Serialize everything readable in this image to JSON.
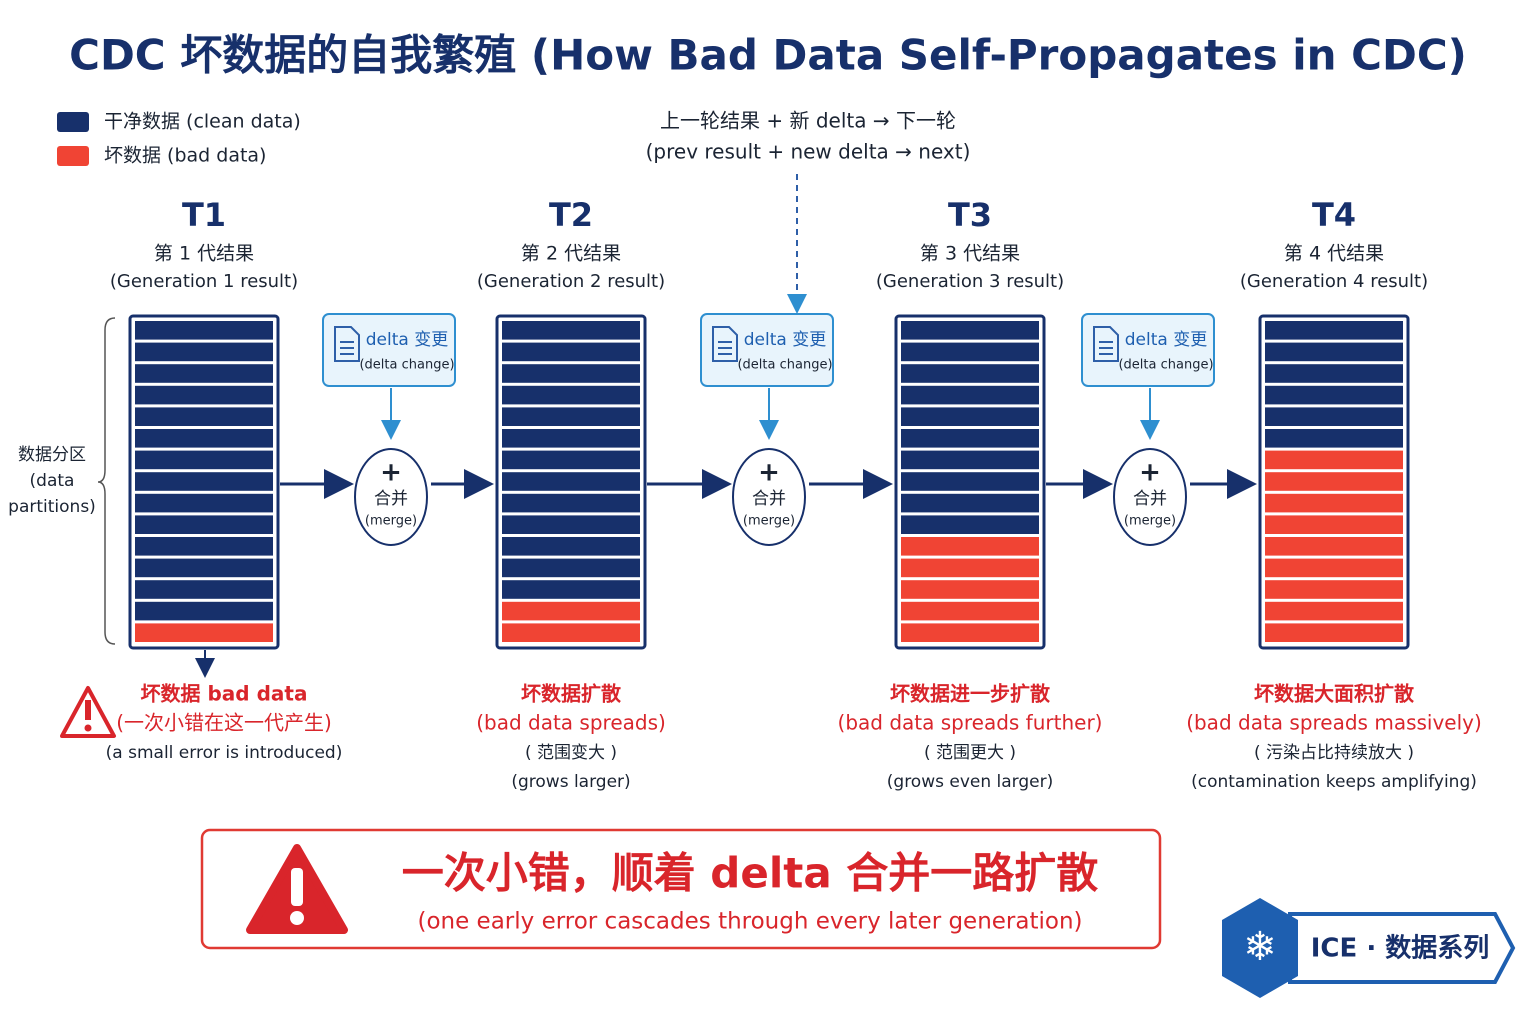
{
  "title": "CDC 坏数据的自我繁殖 (How Bad Data Self-Propagates in CDC)",
  "legend": [
    {
      "label": "干净数据 (clean data)",
      "color": "#17306b"
    },
    {
      "label": "坏数据 (bad data)",
      "color": "#f04434"
    }
  ],
  "axis_label": [
    "数据分区",
    "(data",
    "partitions)"
  ],
  "note": [
    "上一轮结果 + 新 delta → 下一轮",
    "(prev result + new delta → next)"
  ],
  "generations": [
    {
      "label": "T1",
      "zh": "第 1 代结果",
      "en": "(Generation 1 result)",
      "clean": 14,
      "bad": 1,
      "caption": [
        "坏数据 bad data",
        "(一次小错在这一代产生)",
        "(a small error is introduced)"
      ]
    },
    {
      "label": "T2",
      "zh": "第 2 代结果",
      "en": "(Generation 2 result)",
      "clean": 13,
      "bad": 2,
      "caption": [
        "坏数据扩散",
        "(bad data spreads)",
        "( 范围变大 )",
        "(grows larger)"
      ]
    },
    {
      "label": "T3",
      "zh": "第 3 代结果",
      "en": "(Generation 3 result)",
      "clean": 10,
      "bad": 5,
      "caption": [
        "坏数据进一步扩散",
        "(bad data spreads further)",
        "( 范围更大 )",
        "(grows even larger)"
      ]
    },
    {
      "label": "T4",
      "zh": "第 4 代结果",
      "en": "(Generation 4 result)",
      "clean": 6,
      "bad": 9,
      "caption": [
        "坏数据大面积扩散",
        "(bad data spreads massively)",
        "( 污染占比持续放大 )",
        "(contamination keeps amplifying)"
      ]
    }
  ],
  "merges": [
    {
      "delta": "delta 变更",
      "delta_en": "(delta change)",
      "symbol": "+",
      "zh": "合并",
      "en": "(merge)"
    },
    {
      "delta": "delta 变更",
      "delta_en": "(delta change)",
      "symbol": "+",
      "zh": "合并",
      "en": "(merge)"
    },
    {
      "delta": "delta 变更",
      "delta_en": "(delta change)",
      "symbol": "+",
      "zh": "合并",
      "en": "(merge)"
    }
  ],
  "banner": {
    "zh": "一次小错，顺着 delta 合并一路扩散",
    "en": "(one early error cascades through every later generation)"
  },
  "brand": "ICE · 数据系列"
}
